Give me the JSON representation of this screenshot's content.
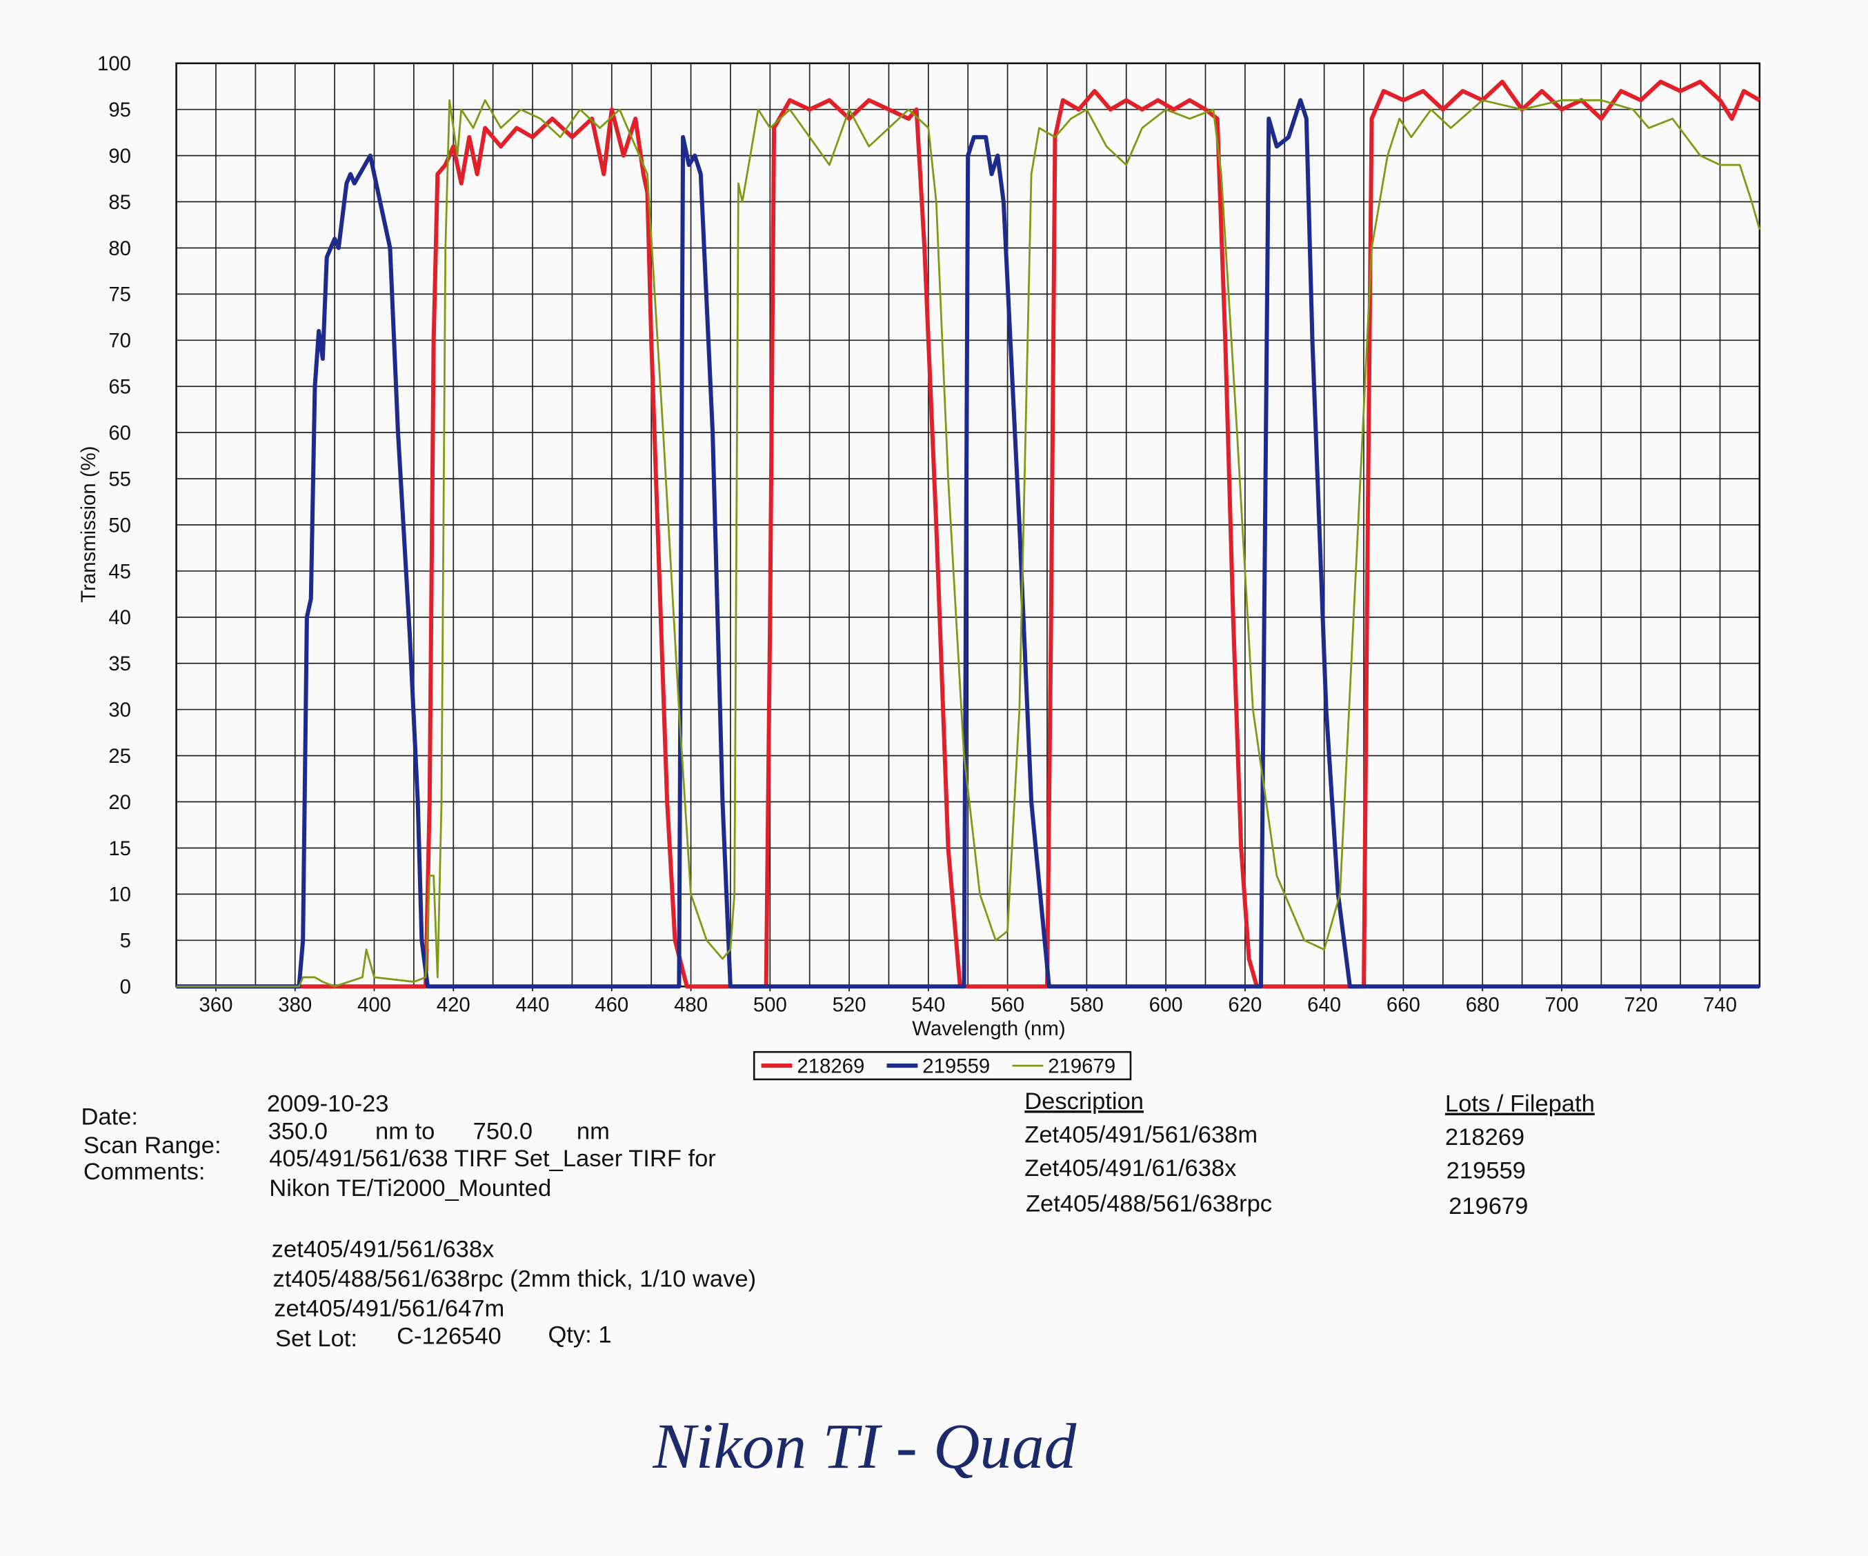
{
  "chart_data": {
    "type": "line",
    "xlabel": "Wavelength (nm)",
    "ylabel": "Transmission (%)",
    "xlim": [
      350,
      750
    ],
    "ylim": [
      0,
      100
    ],
    "xticks": [
      360,
      380,
      400,
      420,
      440,
      460,
      480,
      500,
      520,
      540,
      560,
      580,
      600,
      620,
      640,
      660,
      680,
      700,
      720,
      740
    ],
    "yticks": [
      0,
      5,
      10,
      15,
      20,
      25,
      30,
      35,
      40,
      45,
      50,
      55,
      60,
      65,
      70,
      75,
      80,
      85,
      90,
      95,
      100
    ],
    "xgrid": [
      350,
      360,
      370,
      380,
      390,
      400,
      410,
      420,
      430,
      440,
      450,
      460,
      470,
      480,
      490,
      500,
      510,
      520,
      530,
      540,
      550,
      560,
      570,
      580,
      590,
      600,
      610,
      620,
      630,
      640,
      650,
      660,
      670,
      680,
      690,
      700,
      710,
      720,
      730,
      740,
      750
    ],
    "grid": true,
    "legend": "bottom",
    "series": [
      {
        "name": "218269",
        "color": "#e2202a",
        "width": 3.5,
        "x": [
          350,
          413,
          414,
          415,
          416,
          418,
          420,
          422,
          424,
          426,
          428,
          432,
          436,
          440,
          445,
          450,
          455,
          458,
          460,
          463,
          466,
          468,
          469,
          470,
          472,
          474,
          476,
          479,
          499,
          500,
          501,
          505,
          510,
          515,
          520,
          525,
          530,
          535,
          537,
          539,
          542,
          545,
          548,
          570,
          571,
          572,
          574,
          578,
          582,
          586,
          590,
          594,
          598,
          602,
          606,
          610,
          613,
          615,
          617,
          619,
          621,
          623,
          650,
          651,
          652,
          655,
          660,
          665,
          670,
          675,
          680,
          685,
          690,
          695,
          700,
          705,
          710,
          715,
          720,
          725,
          730,
          735,
          740,
          743,
          746,
          750
        ],
        "values": [
          0,
          0,
          20,
          70,
          88,
          89,
          91,
          87,
          92,
          88,
          93,
          91,
          93,
          92,
          94,
          92,
          94,
          88,
          95,
          90,
          94,
          88,
          86,
          70,
          45,
          20,
          5,
          0,
          0,
          40,
          93,
          96,
          95,
          96,
          94,
          96,
          95,
          94,
          95,
          80,
          50,
          15,
          0,
          0,
          40,
          92,
          96,
          95,
          97,
          95,
          96,
          95,
          96,
          95,
          96,
          95,
          94,
          70,
          40,
          15,
          3,
          0,
          0,
          50,
          94,
          97,
          96,
          97,
          95,
          97,
          96,
          98,
          95,
          97,
          95,
          96,
          94,
          97,
          96,
          98,
          97,
          98,
          96,
          94,
          97,
          96
        ]
      },
      {
        "name": "219559",
        "color": "#1c2b8c",
        "width": 3.5,
        "x": [
          350,
          381,
          382,
          383,
          384,
          385,
          386,
          387,
          388,
          390,
          391,
          393,
          394,
          395,
          399,
          401,
          404,
          406,
          409,
          411,
          412,
          413.5,
          477,
          478,
          479.5,
          481,
          482.5,
          485.5,
          488,
          490,
          549,
          550,
          551.5,
          554.5,
          556,
          557.5,
          559,
          563,
          566,
          570.5,
          624,
          626,
          628,
          631,
          634,
          635.5,
          637,
          640.5,
          643.5,
          646.5,
          750
        ],
        "values": [
          0,
          0,
          5,
          40,
          42,
          65,
          71,
          68,
          79,
          81,
          80,
          87,
          88,
          87,
          90,
          86,
          80,
          60,
          38,
          20,
          5,
          0,
          0,
          92,
          89,
          90,
          88,
          60,
          20,
          0,
          0,
          90,
          92,
          92,
          88,
          90,
          85,
          50,
          20,
          0,
          0,
          94,
          91,
          92,
          96,
          94,
          70,
          30,
          10,
          0,
          0
        ]
      },
      {
        "name": "219679",
        "color": "#7d9a12",
        "width": 1.6,
        "x": [
          350,
          381,
          382,
          385,
          387,
          390,
          397,
          398,
          400,
          410,
          413,
          414,
          415,
          416,
          417,
          418,
          419,
          421,
          422,
          425,
          428,
          432,
          437,
          442,
          447,
          452,
          457,
          462,
          466,
          469,
          473,
          477,
          480,
          484,
          488,
          490,
          491,
          492,
          493,
          495,
          497,
          500,
          505,
          510,
          515,
          520,
          525,
          530,
          535,
          540,
          542,
          545,
          549,
          553,
          557,
          560,
          563,
          566,
          568,
          572,
          576,
          580,
          585,
          590,
          594,
          600,
          606,
          612,
          614,
          618,
          622,
          628,
          635,
          640,
          644,
          648,
          652,
          656,
          659,
          662,
          667,
          672,
          680,
          690,
          700,
          710,
          718,
          722,
          728,
          735,
          740,
          745,
          748,
          750
        ],
        "values": [
          0,
          0,
          1,
          1,
          0.5,
          0,
          1,
          4,
          1,
          0.5,
          1,
          12,
          12,
          1,
          20,
          80,
          96,
          90,
          95,
          93,
          96,
          93,
          95,
          94,
          92,
          95,
          93,
          95,
          91,
          88,
          60,
          30,
          10,
          5,
          3,
          4,
          10,
          87,
          85,
          90,
          95,
          93,
          95,
          92,
          89,
          95,
          91,
          93,
          95,
          93,
          85,
          55,
          25,
          10,
          5,
          6,
          30,
          88,
          93,
          92,
          94,
          95,
          91,
          89,
          93,
          95,
          94,
          95,
          88,
          60,
          30,
          12,
          5,
          4,
          10,
          45,
          80,
          90,
          94,
          92,
          95,
          93,
          96,
          95,
          96,
          96,
          95,
          93,
          94,
          90,
          89,
          89,
          85,
          82
        ]
      }
    ]
  },
  "info": {
    "date_label": "Date:",
    "date": "2009-10-23",
    "scan_range_label": "Scan Range:",
    "scan_start": "350.0",
    "to_label": "nm to",
    "scan_end": "750.0",
    "unit": "nm",
    "comments_label": "Comments:",
    "comments": [
      "405/491/561/638 TIRF Set_Laser TIRF for",
      "Nikon TE/Ti2000_Mounted",
      "zet405/491/561/638x",
      "zt405/488/561/638rpc (2mm thick, 1/10 wave)",
      "zet405/491/561/647m"
    ],
    "set_lot_label": "Set Lot:",
    "set_lot": "C-126540",
    "qty": "Qty: 1"
  },
  "table": {
    "description_header": "Description",
    "lots_header": "Lots / Filepath",
    "rows": [
      [
        "Zet405/491/561/638m",
        "218269"
      ],
      [
        "Zet405/491/61/638x",
        "219559"
      ],
      [
        "Zet405/488/561/638rpc",
        "219679"
      ]
    ]
  },
  "annotation": "Nikon TI - Quad"
}
